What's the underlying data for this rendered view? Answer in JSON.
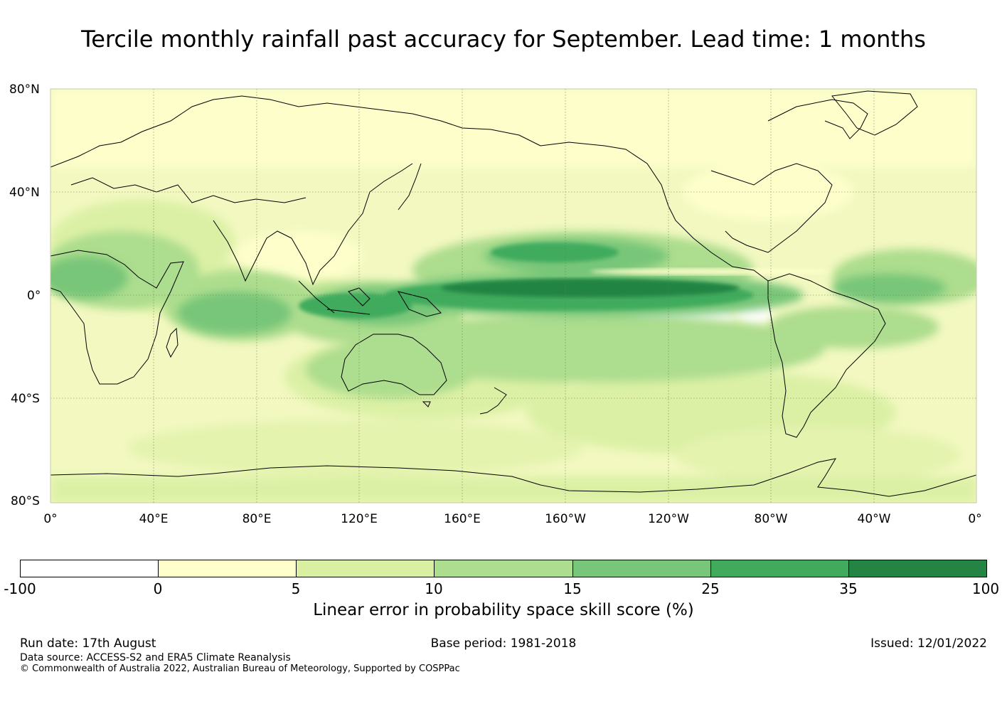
{
  "title": "Tercile monthly rainfall past accuracy for September. Lead time: 1 months",
  "map": {
    "lat_labels": [
      "80°N",
      "40°N",
      "0°",
      "40°S",
      "80°S"
    ],
    "lon_labels": [
      "0°",
      "40°E",
      "80°E",
      "120°E",
      "160°E",
      "160°W",
      "120°W",
      "80°W",
      "40°W",
      "0°"
    ]
  },
  "colorbar": {
    "ticks": [
      "-100",
      "0",
      "5",
      "10",
      "15",
      "25",
      "35",
      "100"
    ],
    "colors": [
      "#ffffff",
      "#ffffcc",
      "#d9f0a3",
      "#addd8e",
      "#78c679",
      "#41ab5d",
      "#238443"
    ],
    "label": "Linear error in probability space skill score (%)"
  },
  "footer": {
    "run_date": "Run date: 17th August",
    "base_period": "Base period: 1981-2018",
    "issued": "Issued: 12/01/2022",
    "data_source": "Data source: ACCESS-S2 and ERA5 Climate Reanalysis",
    "copyright": "© Commonwealth of Australia 2022, Australian Bureau of Meteorology, Supported by COSPPac"
  }
}
